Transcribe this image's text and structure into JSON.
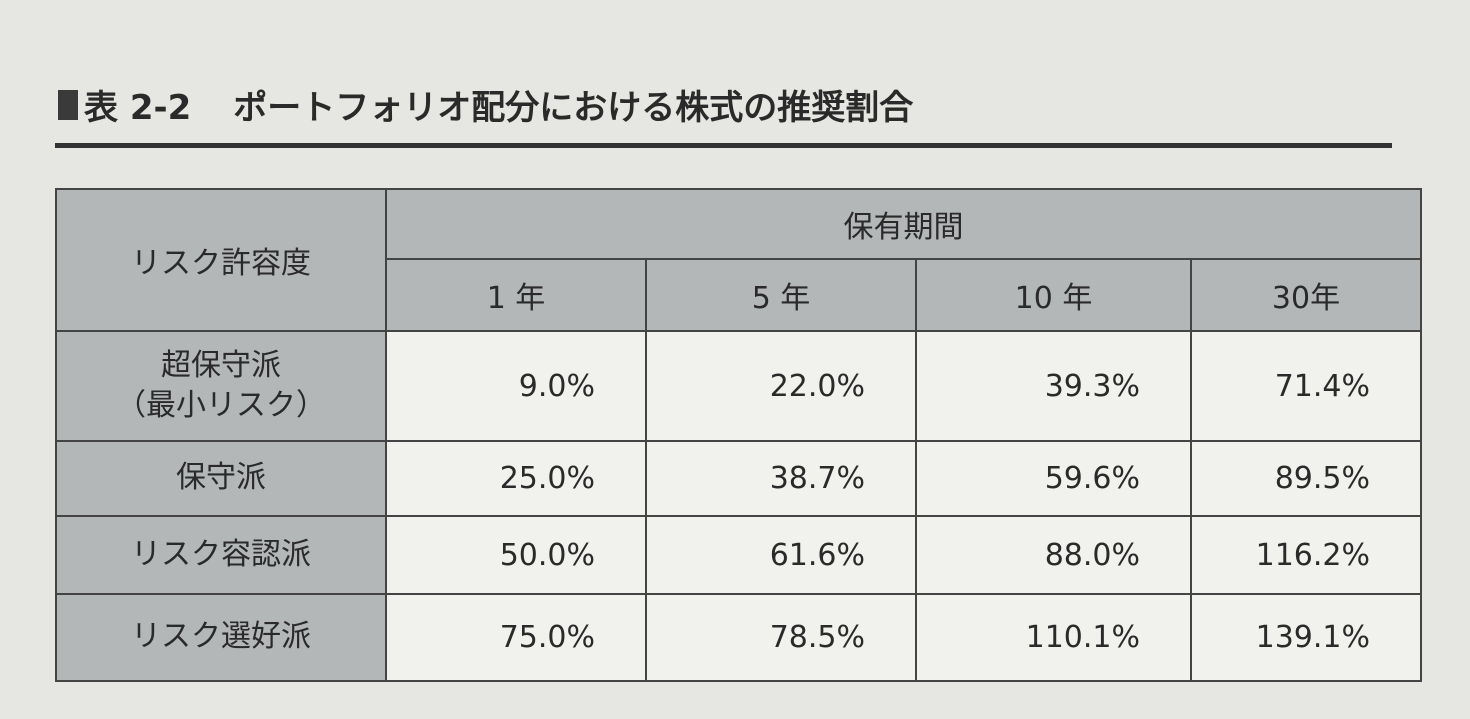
{
  "header": {
    "number": "表 2-2",
    "title": "ポートフォリオ配分における株式の推奨割合"
  },
  "table": {
    "corner": "リスク許容度",
    "group": "保有期間",
    "columns": [
      "1 年",
      "5 年",
      "10 年",
      "30年"
    ],
    "rows": [
      {
        "label": [
          "超保守派",
          "（最小リスク）"
        ],
        "cells": [
          "9.0%",
          "22.0%",
          "39.3%",
          "71.4%"
        ]
      },
      {
        "label": [
          "保守派"
        ],
        "cells": [
          "25.0%",
          "38.7%",
          "59.6%",
          "89.5%"
        ]
      },
      {
        "label": [
          "リスク容認派"
        ],
        "cells": [
          "50.0%",
          "61.6%",
          "88.0%",
          "116.2%"
        ]
      },
      {
        "label": [
          "リスク選好派"
        ],
        "cells": [
          "75.0%",
          "78.5%",
          "110.1%",
          "139.1%"
        ]
      }
    ]
  }
}
